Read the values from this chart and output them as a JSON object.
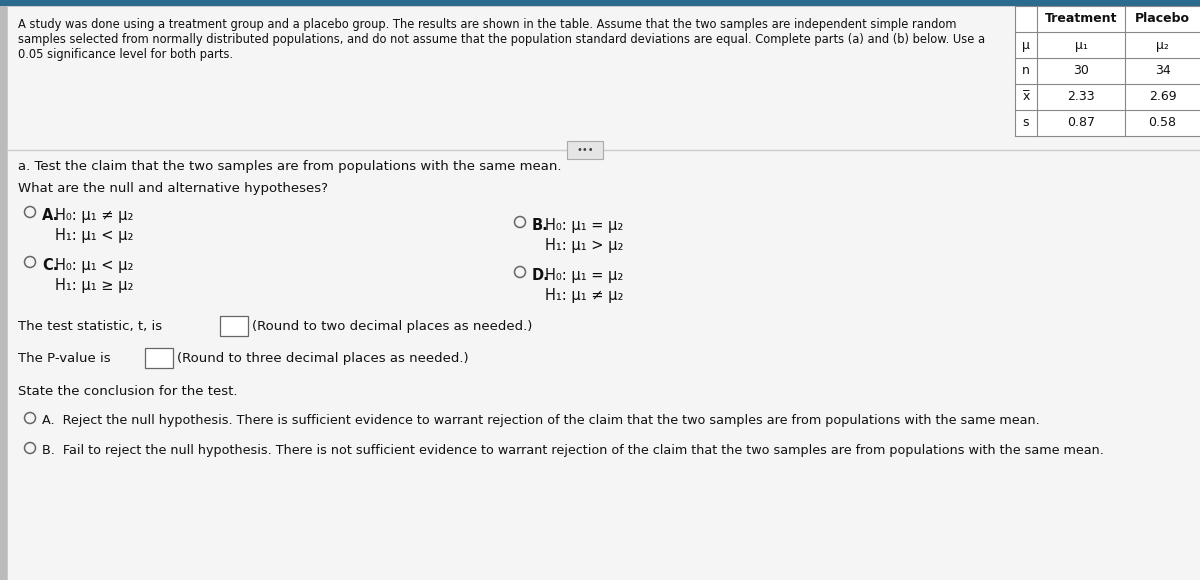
{
  "bg_color": "#e8e8e8",
  "white_bg": "#ffffff",
  "top_strip_color": "#3a7ca5",
  "text_color": "#111111",
  "main_text_line1": "A study was done using a treatment group and a placebo group. The results are shown in the table. Assume that the two samples are independent simple random",
  "main_text_line2": "samples selected from normally distributed populations, and do not assume that the population standard deviations are equal. Complete parts (a) and (b) below. Use a",
  "main_text_line3": "0.05 significance level for both parts.",
  "table_headers": [
    "",
    "Treatment",
    "Placebo"
  ],
  "table_row0": [
    "μ",
    "μ₁",
    "μ₂"
  ],
  "table_row1": [
    "n",
    "30",
    "34"
  ],
  "table_row2": [
    "x̅",
    "2.33",
    "2.69"
  ],
  "table_row3": [
    "s",
    "0.87",
    "0.58"
  ],
  "part_a_label": "a. Test the claim that the two samples are from populations with the same mean.",
  "hypotheses_prompt": "What are the null and alternative hypotheses?",
  "optA_label": "A.",
  "optA_h0": "H₀: μ₁ ≠ μ₂",
  "optA_h1": "H₁: μ₁ < μ₂",
  "optB_label": "B.",
  "optB_h0": "H₀: μ₁ = μ₂",
  "optB_h1": "H₁: μ₁ > μ₂",
  "optC_label": "C.",
  "optC_h0": "H₀: μ₁ < μ₂",
  "optC_h1": "H₁: μ₁ ≥ μ₂",
  "optD_label": "D.",
  "optD_h0": "H₀: μ₁ = μ₂",
  "optD_h1": "H₁: μ₁ ≠ μ₂",
  "test_stat_line": "The test statistic, t, is",
  "pvalue_line": "The P-value is",
  "round_2": "(Round to two decimal places as needed.)",
  "round_3": "(Round to three decimal places as needed.)",
  "conclusion_label": "State the conclusion for the test.",
  "conclusion_A": "A.  Reject the null hypothesis. There is sufficient evidence to warrant rejection of the claim that the two samples are from populations with the same mean.",
  "conclusion_B": "B.  Fail to reject the null hypothesis. There is not sufficient evidence to warrant rejection of the claim that the two samples are from populations with the same mean.",
  "divider_text": "•••",
  "figwidth": 12.0,
  "figheight": 5.8,
  "dpi": 100
}
